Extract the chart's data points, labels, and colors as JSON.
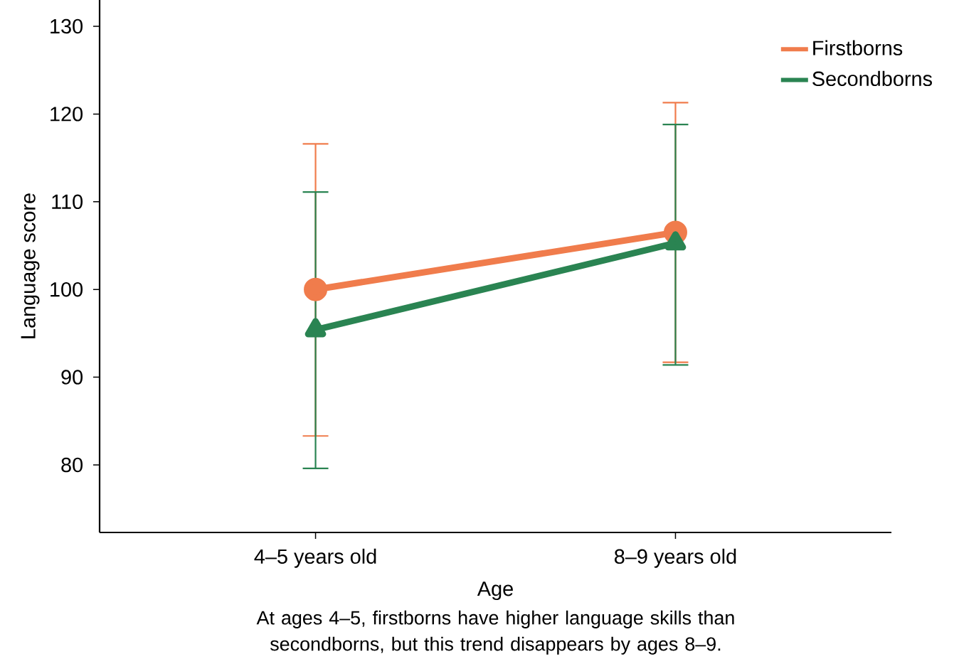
{
  "chart_data": {
    "type": "line",
    "xlabel": "Age",
    "ylabel": "Language score",
    "annotations": [
      "At ages 4–5, firstborns have higher language skills than secondborns, but this trend disappears by ages 8–9."
    ],
    "categories": [
      "4–5 years old",
      "8–9 years old"
    ],
    "series": [
      {
        "name": "Firstborns",
        "color": "#f07c4c",
        "marker": "circle",
        "values": [
          100,
          106.5
        ],
        "errors": [
          [
            83.3,
            116.6
          ],
          [
            91.7,
            121.3
          ]
        ]
      },
      {
        "name": "Secondborns",
        "color": "#2a8452",
        "marker": "triangle",
        "values": [
          95.4,
          105.3
        ],
        "errors": [
          [
            79.6,
            111.1
          ],
          [
            91.4,
            118.8
          ]
        ]
      }
    ],
    "ylim": [
      72.3,
      133
    ],
    "yticks": [
      80,
      90,
      100,
      110,
      120,
      130
    ],
    "grid": false,
    "legend": "top right",
    "line_style": "solid"
  }
}
